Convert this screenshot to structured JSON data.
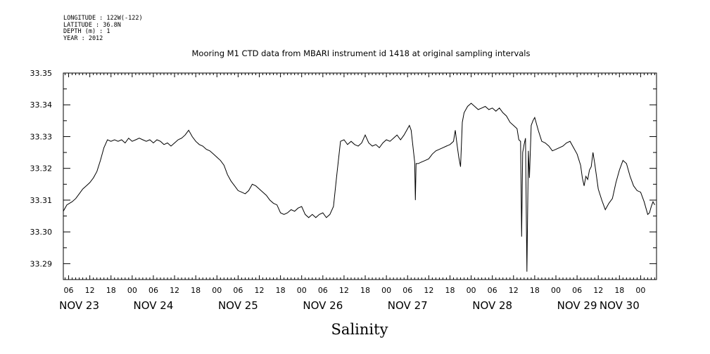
{
  "metadata": {
    "longitude": "LONGITUDE : 122W(-122)",
    "latitude": "LATITUDE : 36.8N",
    "depth": "DEPTH (m) : 1",
    "year": "YEAR : 2012"
  },
  "chart_data": {
    "type": "line",
    "title": "Mooring M1 CTD data from MBARI instrument id 1418 at original sampling intervals",
    "xlabel": "Salinity",
    "ylabel": "",
    "x_unit": "hours since NOV 23 00:00",
    "xlim": [
      4.5,
      172.5
    ],
    "ylim": [
      33.285,
      33.35
    ],
    "yticks": [
      33.29,
      33.3,
      33.31,
      33.32,
      33.33,
      33.34,
      33.35
    ],
    "ytick_labels": [
      "33.29",
      "33.30",
      "33.31",
      "33.32",
      "33.33",
      "33.34",
      "33.35"
    ],
    "xticks": [
      {
        "x": 6,
        "label": "06"
      },
      {
        "x": 12,
        "label": "12"
      },
      {
        "x": 18,
        "label": "18"
      },
      {
        "x": 24,
        "label": "00"
      },
      {
        "x": 30,
        "label": "06"
      },
      {
        "x": 36,
        "label": "12"
      },
      {
        "x": 42,
        "label": "18"
      },
      {
        "x": 48,
        "label": "00"
      },
      {
        "x": 54,
        "label": "06"
      },
      {
        "x": 60,
        "label": "12"
      },
      {
        "x": 66,
        "label": "18"
      },
      {
        "x": 72,
        "label": "00"
      },
      {
        "x": 78,
        "label": "06"
      },
      {
        "x": 84,
        "label": "12"
      },
      {
        "x": 90,
        "label": "18"
      },
      {
        "x": 96,
        "label": "00"
      },
      {
        "x": 102,
        "label": "06"
      },
      {
        "x": 108,
        "label": "12"
      },
      {
        "x": 114,
        "label": "18"
      },
      {
        "x": 120,
        "label": "00"
      },
      {
        "x": 126,
        "label": "06"
      },
      {
        "x": 132,
        "label": "12"
      },
      {
        "x": 138,
        "label": "18"
      },
      {
        "x": 144,
        "label": "00"
      },
      {
        "x": 150,
        "label": "06"
      },
      {
        "x": 156,
        "label": "12"
      },
      {
        "x": 162,
        "label": "18"
      },
      {
        "x": 168,
        "label": "00"
      }
    ],
    "day_labels": [
      {
        "x": 9,
        "label": "NOV 23"
      },
      {
        "x": 30,
        "label": "NOV 24"
      },
      {
        "x": 54,
        "label": "NOV 25"
      },
      {
        "x": 78,
        "label": "NOV 26"
      },
      {
        "x": 102,
        "label": "NOV 27"
      },
      {
        "x": 126,
        "label": "NOV 28"
      },
      {
        "x": 150,
        "label": "NOV 29"
      },
      {
        "x": 162,
        "label": "NOV 30"
      }
    ],
    "series": [
      {
        "values": [
          [
            4.5,
            33.3065
          ],
          [
            5.5,
            33.3085
          ],
          [
            7,
            33.3095
          ],
          [
            8,
            33.3105
          ],
          [
            9,
            33.312
          ],
          [
            10,
            33.3135
          ],
          [
            11,
            33.3145
          ],
          [
            12,
            33.3155
          ],
          [
            13,
            33.317
          ],
          [
            14,
            33.319
          ],
          [
            15,
            33.3225
          ],
          [
            16,
            33.3265
          ],
          [
            17,
            33.329
          ],
          [
            18,
            33.3285
          ],
          [
            19,
            33.329
          ],
          [
            20,
            33.3285
          ],
          [
            21,
            33.329
          ],
          [
            22,
            33.328
          ],
          [
            23,
            33.3295
          ],
          [
            24,
            33.3285
          ],
          [
            25,
            33.329
          ],
          [
            26,
            33.3295
          ],
          [
            27,
            33.329
          ],
          [
            28,
            33.3285
          ],
          [
            29,
            33.329
          ],
          [
            30,
            33.328
          ],
          [
            31,
            33.329
          ],
          [
            32,
            33.3285
          ],
          [
            33,
            33.3275
          ],
          [
            34,
            33.328
          ],
          [
            35,
            33.327
          ],
          [
            36,
            33.328
          ],
          [
            37,
            33.329
          ],
          [
            38,
            33.3295
          ],
          [
            39,
            33.3305
          ],
          [
            40,
            33.332
          ],
          [
            41,
            33.33
          ],
          [
            42,
            33.3285
          ],
          [
            43,
            33.3275
          ],
          [
            44,
            33.327
          ],
          [
            45,
            33.326
          ],
          [
            46,
            33.3255
          ],
          [
            47,
            33.3245
          ],
          [
            48,
            33.3235
          ],
          [
            49,
            33.3225
          ],
          [
            50,
            33.321
          ],
          [
            51,
            33.318
          ],
          [
            52,
            33.316
          ],
          [
            53,
            33.3145
          ],
          [
            54,
            33.313
          ],
          [
            55,
            33.3125
          ],
          [
            56,
            33.312
          ],
          [
            57,
            33.313
          ],
          [
            58,
            33.315
          ],
          [
            59,
            33.3145
          ],
          [
            60,
            33.3135
          ],
          [
            61,
            33.3125
          ],
          [
            62,
            33.3115
          ],
          [
            63,
            33.31
          ],
          [
            64,
            33.309
          ],
          [
            65,
            33.3085
          ],
          [
            66,
            33.306
          ],
          [
            67,
            33.3055
          ],
          [
            68,
            33.306
          ],
          [
            69,
            33.307
          ],
          [
            70,
            33.3065
          ],
          [
            71,
            33.3075
          ],
          [
            72,
            33.308
          ],
          [
            73,
            33.3055
          ],
          [
            74,
            33.3045
          ],
          [
            75,
            33.3055
          ],
          [
            76,
            33.3045
          ],
          [
            77,
            33.3055
          ],
          [
            78,
            33.306
          ],
          [
            79,
            33.3045
          ],
          [
            80,
            33.3055
          ],
          [
            81,
            33.308
          ],
          [
            82,
            33.3185
          ],
          [
            83,
            33.3285
          ],
          [
            84,
            33.329
          ],
          [
            85,
            33.3275
          ],
          [
            86,
            33.3285
          ],
          [
            87,
            33.3275
          ],
          [
            88,
            33.327
          ],
          [
            89,
            33.328
          ],
          [
            90,
            33.3305
          ],
          [
            91,
            33.328
          ],
          [
            92,
            33.327
          ],
          [
            93,
            33.3275
          ],
          [
            94,
            33.3265
          ],
          [
            95,
            33.328
          ],
          [
            96,
            33.329
          ],
          [
            97,
            33.3285
          ],
          [
            98,
            33.3295
          ],
          [
            99,
            33.3305
          ],
          [
            100,
            33.329
          ],
          [
            101,
            33.3305
          ],
          [
            102,
            33.3325
          ],
          [
            102.5,
            33.3335
          ],
          [
            103,
            33.332
          ],
          [
            104,
            33.322
          ],
          [
            104.2,
            33.31
          ],
          [
            104.4,
            33.3215
          ],
          [
            105,
            33.3215
          ],
          [
            106,
            33.322
          ],
          [
            107,
            33.3225
          ],
          [
            108,
            33.323
          ],
          [
            109,
            33.3245
          ],
          [
            110,
            33.3255
          ],
          [
            111,
            33.326
          ],
          [
            112,
            33.3265
          ],
          [
            113,
            33.327
          ],
          [
            114,
            33.3275
          ],
          [
            115,
            33.3285
          ],
          [
            115.5,
            33.332
          ],
          [
            116,
            33.3275
          ],
          [
            116.5,
            33.3235
          ],
          [
            117,
            33.3205
          ],
          [
            117.5,
            33.3345
          ],
          [
            118,
            33.3375
          ],
          [
            119,
            33.3395
          ],
          [
            120,
            33.3405
          ],
          [
            121,
            33.3395
          ],
          [
            122,
            33.3385
          ],
          [
            123,
            33.339
          ],
          [
            124,
            33.3395
          ],
          [
            125,
            33.3385
          ],
          [
            126,
            33.339
          ],
          [
            127,
            33.338
          ],
          [
            128,
            33.339
          ],
          [
            129,
            33.3375
          ],
          [
            130,
            33.3365
          ],
          [
            131,
            33.3345
          ],
          [
            132,
            33.3335
          ],
          [
            133,
            33.3325
          ],
          [
            133.5,
            33.329
          ],
          [
            134,
            33.3285
          ],
          [
            134.3,
            33.2985
          ],
          [
            134.6,
            33.325
          ],
          [
            135,
            33.3275
          ],
          [
            135.4,
            33.3295
          ],
          [
            135.8,
            33.2875
          ],
          [
            136.2,
            33.3255
          ],
          [
            136.5,
            33.317
          ],
          [
            137,
            33.3335
          ],
          [
            137.5,
            33.335
          ],
          [
            138,
            33.336
          ],
          [
            139,
            33.332
          ],
          [
            140,
            33.3285
          ],
          [
            141,
            33.328
          ],
          [
            142,
            33.327
          ],
          [
            143,
            33.3255
          ],
          [
            144,
            33.326
          ],
          [
            145,
            33.3265
          ],
          [
            146,
            33.327
          ],
          [
            147,
            33.328
          ],
          [
            148,
            33.3285
          ],
          [
            149,
            33.3265
          ],
          [
            150,
            33.3245
          ],
          [
            151,
            33.321
          ],
          [
            151.5,
            33.317
          ],
          [
            152,
            33.3145
          ],
          [
            152.5,
            33.3175
          ],
          [
            153,
            33.3165
          ],
          [
            153.5,
            33.3195
          ],
          [
            154,
            33.3205
          ],
          [
            154.5,
            33.325
          ],
          [
            155,
            33.3215
          ],
          [
            156,
            33.3135
          ],
          [
            157,
            33.31
          ],
          [
            158,
            33.307
          ],
          [
            159,
            33.309
          ],
          [
            160,
            33.3105
          ],
          [
            161,
            33.3155
          ],
          [
            162,
            33.3195
          ],
          [
            163,
            33.3225
          ],
          [
            164,
            33.3215
          ],
          [
            165,
            33.3175
          ],
          [
            166,
            33.3145
          ],
          [
            167,
            33.313
          ],
          [
            168,
            33.3125
          ],
          [
            169,
            33.3095
          ],
          [
            170,
            33.3055
          ],
          [
            170.5,
            33.306
          ],
          [
            171,
            33.308
          ],
          [
            171.5,
            33.3095
          ],
          [
            172,
            33.3085
          ]
        ]
      }
    ]
  }
}
